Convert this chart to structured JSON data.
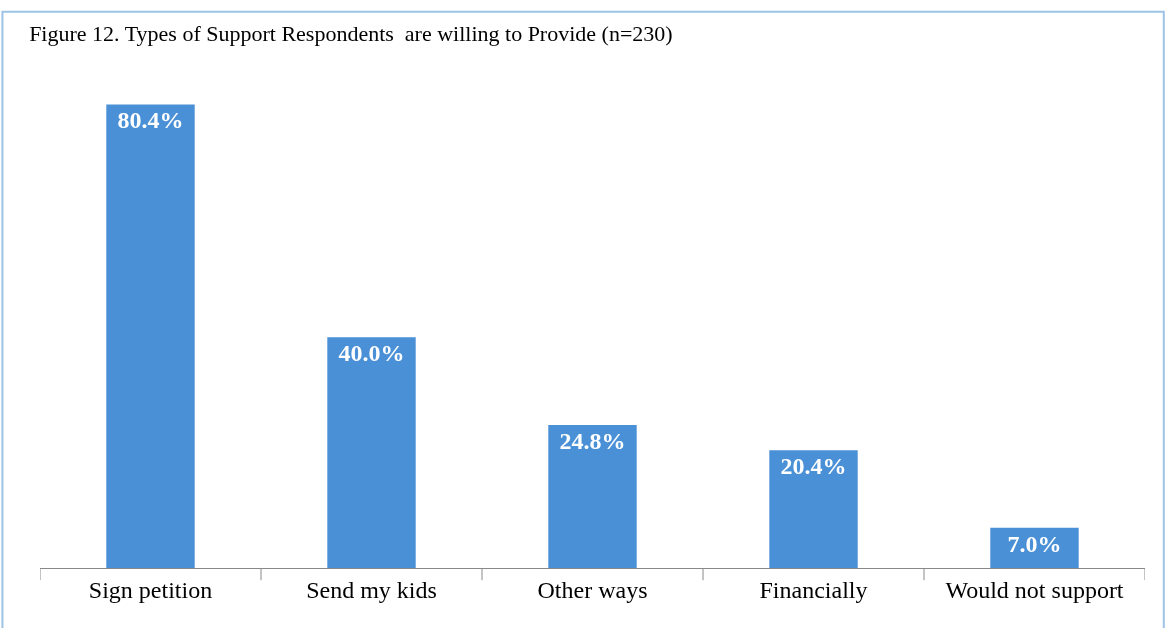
{
  "chart_data": {
    "type": "bar",
    "title": "Figure 12. Types of Support Respondents  are willing to Provide (n=230)",
    "categories": [
      "Sign petition",
      "Send my kids",
      "Other ways",
      "Financially",
      "Would not support"
    ],
    "values": [
      80.4,
      40.0,
      24.8,
      20.4,
      7.0
    ],
    "value_labels": [
      "80.4%",
      "40.0%",
      "24.8%",
      "20.4%",
      "7.0%"
    ],
    "color": "#4a90d6",
    "tick_labels": "x"
  }
}
